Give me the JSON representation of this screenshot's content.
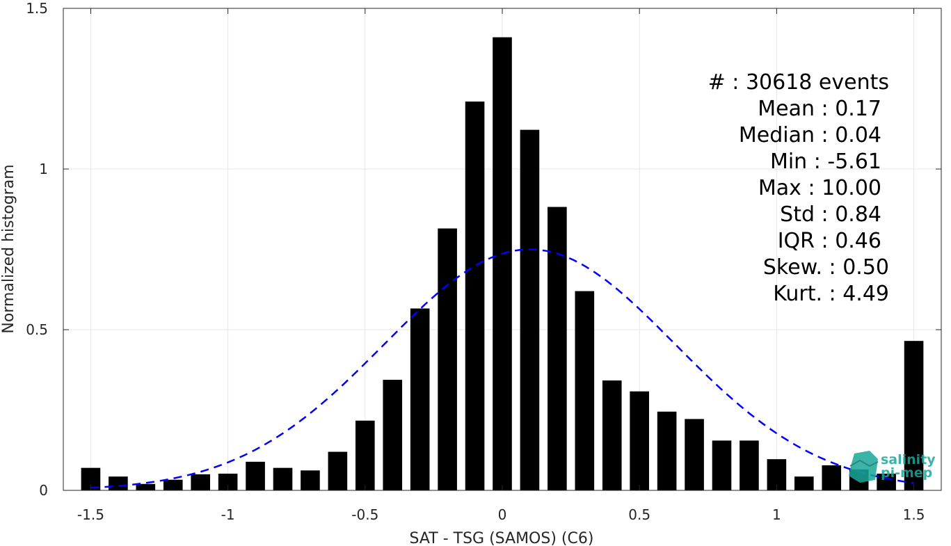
{
  "chart_data": {
    "type": "bar",
    "title": "",
    "xlabel": "SAT - TSG (SAMOS) (C6)",
    "ylabel": "Normalized histogram",
    "xlim": [
      -1.6,
      1.6
    ],
    "ylim": [
      0,
      1.5
    ],
    "grid": true,
    "x_ticks": [
      -1.5,
      -1,
      -0.5,
      0,
      0.5,
      1,
      1.5
    ],
    "x_tick_labels": [
      "-1.5",
      "-1",
      "-0.5",
      "0",
      "0.5",
      "1",
      "1.5"
    ],
    "y_ticks": [
      0,
      0.5,
      1,
      1.5
    ],
    "y_tick_labels": [
      "0",
      "0.5",
      "1",
      "1.5"
    ],
    "bar_width": 0.07,
    "bar_color": "#000000",
    "x": [
      -1.5,
      -1.4,
      -1.3,
      -1.2,
      -1.1,
      -1.0,
      -0.9,
      -0.8,
      -0.7,
      -0.6,
      -0.5,
      -0.4,
      -0.3,
      -0.2,
      -0.1,
      0.0,
      0.1,
      0.2,
      0.3,
      0.4,
      0.5,
      0.6,
      0.7,
      0.8,
      0.9,
      1.0,
      1.1,
      1.2,
      1.3,
      1.4,
      1.5
    ],
    "values": [
      0.07,
      0.043,
      0.02,
      0.033,
      0.05,
      0.052,
      0.089,
      0.07,
      0.062,
      0.12,
      0.217,
      0.344,
      0.566,
      0.815,
      1.21,
      1.41,
      1.122,
      0.882,
      0.62,
      0.342,
      0.308,
      0.245,
      0.222,
      0.155,
      0.155,
      0.097,
      0.043,
      0.078,
      0.065,
      0.052,
      0.465
    ],
    "fit_curve": {
      "type": "gaussian",
      "mean": 0.1,
      "std": 0.53,
      "peak": 0.75,
      "color": "#0000ff",
      "line_style": "dashed"
    },
    "stats": [
      {
        "label": "#  : 30618 events"
      },
      {
        "label": "Mean : 0.17"
      },
      {
        "label": "Median : 0.04"
      },
      {
        "label": "Min : -5.61"
      },
      {
        "label": "Max : 10.00"
      },
      {
        "label": "Std : 0.84"
      },
      {
        "label": "IQR : 0.46"
      },
      {
        "label": "Skew. : 0.50"
      },
      {
        "label": "Kurt. : 4.49"
      }
    ]
  },
  "logo": {
    "line1": "salinity",
    "line2": "pi-mep",
    "color": "#1aa89a"
  }
}
